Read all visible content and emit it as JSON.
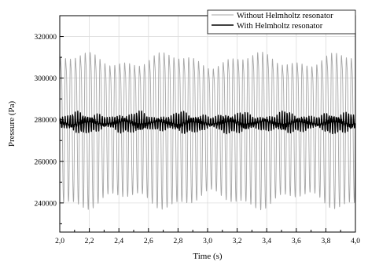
{
  "chart_data": {
    "type": "line",
    "xlabel": "Time (s)",
    "ylabel": "Pressure (Pa)",
    "xlim": [
      2.0,
      4.0
    ],
    "ylim": [
      226000,
      330000
    ],
    "x_ticks": [
      2.0,
      2.2,
      2.4,
      2.6,
      2.8,
      3.0,
      3.2,
      3.4,
      3.6,
      3.8,
      4.0
    ],
    "x_tick_labels": [
      "2,0",
      "2,2",
      "2,4",
      "2,6",
      "2,8",
      "3,0",
      "3,2",
      "3,4",
      "3,6",
      "3,8",
      "4,0"
    ],
    "y_ticks": [
      240000,
      260000,
      280000,
      300000,
      320000
    ],
    "y_tick_labels": [
      "240000",
      "260000",
      "280000",
      "300000",
      "320000"
    ],
    "grid": true,
    "legend_position": "top-right",
    "series": [
      {
        "name": "Without Helmholtz resonator",
        "color": "#a6a6a6",
        "signal": {
          "mean": 278000,
          "amplitude": 42000,
          "cycles_per_second": 30,
          "start_time": 2.0,
          "end_time": 4.0
        }
      },
      {
        "name": "With Helmholtz resonator",
        "color": "#000000",
        "signal": {
          "mean": 278500,
          "amplitude": 4500,
          "cycles_per_second": 60,
          "start_time": 2.0,
          "end_time": 4.0
        }
      }
    ]
  }
}
